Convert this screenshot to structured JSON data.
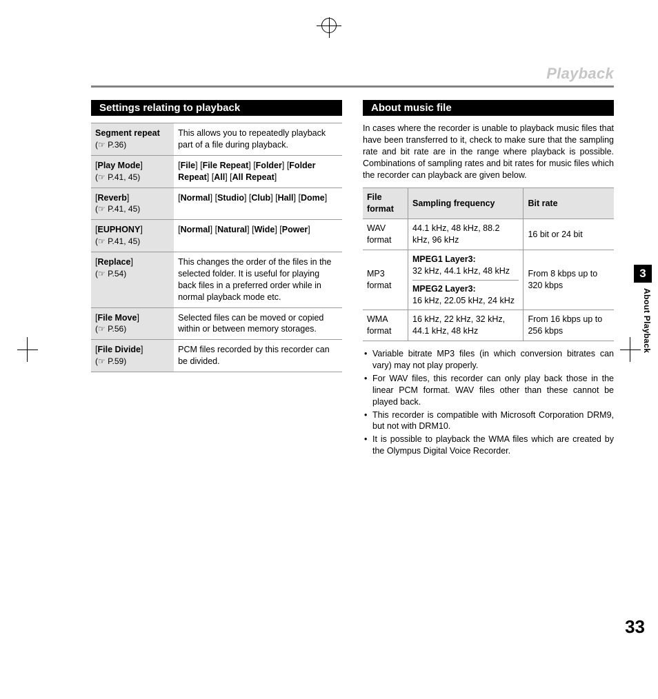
{
  "header": {
    "title": "Playback"
  },
  "sideTab": {
    "chapter": "3",
    "label": "About Playback"
  },
  "pageNumber": "33",
  "left": {
    "title": "Settings relating to playback",
    "rows": [
      {
        "labelBold": "Segment repeat",
        "labelRef": "(☞ P.36)",
        "desc": "This allows you to repeat­edly playback part of a file during playback."
      },
      {
        "labelBracket": "Play Mode",
        "labelRef": "(☞ P.41, 45)",
        "options": [
          "File",
          "File Repeat",
          "Folder",
          "Folder Repeat",
          "All",
          "All Repeat"
        ]
      },
      {
        "labelBracket": "Reverb",
        "labelRef": "(☞ P.41, 45)",
        "options": [
          "Normal",
          "Studio",
          "Club",
          "Hall",
          "Dome"
        ]
      },
      {
        "labelBracket": "EUPHONY",
        "labelRef": "(☞ P.41, 45)",
        "options": [
          "Normal",
          "Natural",
          "Wide",
          "Power"
        ]
      },
      {
        "labelBracket": "Replace",
        "labelRef": "(☞ P.54)",
        "desc": "This changes the order of the files in the selected folder. It is useful for playing back files in a preferred or­der while in normal playback mode etc."
      },
      {
        "labelBracket": "File Move",
        "labelRef": "(☞ P.56)",
        "desc": "Selected files can be moved or copied within or between memory storages."
      },
      {
        "labelBracket": "File Divide",
        "labelRef": "(☞ P.59)",
        "desc": "PCM files recorded by this recorder can be divided."
      }
    ]
  },
  "right": {
    "title": "About music file",
    "intro": "In cases where the recorder is unable to playback music files that have been transferred to it, check to make sure that the sampling rate and bit rate are in the range where playback is possible. Combinations of sampling rates and bit rates for music files which the recorder can playback are given below.",
    "table": {
      "headers": [
        "File format",
        "Sampling frequency",
        "Bit rate"
      ],
      "rows": [
        {
          "format": "WAV format",
          "sfHtml": "44.1 kHz, 48 kHz, 88.2 kHz, 96 kHz",
          "bitrate": "16 bit or 24 bit"
        },
        {
          "format": "MP3 format",
          "sfHtml": "<div class=\"subcell\"><span class=\"bold\">MPEG1 Layer3:</span><br>32 kHz, 44.1 kHz, 48 kHz</div><span class=\"bold\">MPEG2 Layer3:</span><br>16 kHz, 22.05 kHz, 24 kHz",
          "bitrate": "From 8 kbps up to 320 kbps"
        },
        {
          "format": "WMA format",
          "sfHtml": "16 kHz, 22 kHz, 32 kHz, 44.1 kHz, 48 kHz",
          "bitrate": "From 16 kbps up to 256 kbps"
        }
      ]
    },
    "notes": [
      "Variable bitrate MP3 files (in which conversion bitrates can vary) may not play properly.",
      "For WAV files, this recorder can only play back those in the linear PCM format. WAV files other than these cannot be played back.",
      "This recorder is compatible with Microsoft Corporation DRM9, but not with DRM10.",
      "It is possible to playback the WMA files which are created by the Olympus Digital Voice Recorder."
    ]
  }
}
